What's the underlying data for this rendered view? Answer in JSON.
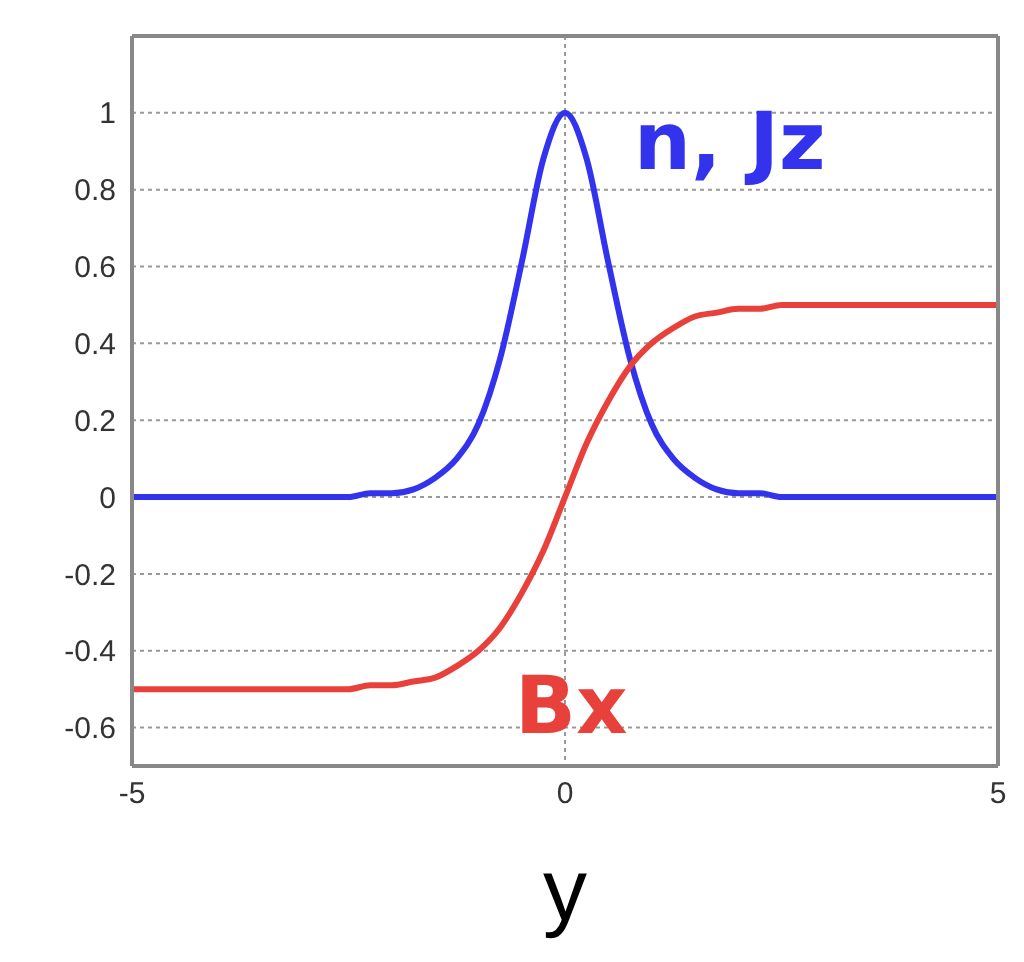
{
  "chart_data": {
    "type": "line",
    "xlabel": "y",
    "x": [
      -5,
      -4.75,
      -4.5,
      -4.25,
      -4,
      -3.75,
      -3.5,
      -3.25,
      -3,
      -2.75,
      -2.5,
      -2.25,
      -2,
      -1.75,
      -1.5,
      -1.25,
      -1,
      -0.75,
      -0.5,
      -0.25,
      0,
      0.25,
      0.5,
      0.75,
      1,
      1.25,
      1.5,
      1.75,
      2,
      2.25,
      2.5,
      2.75,
      3,
      3.25,
      3.5,
      3.75,
      4,
      4.25,
      4.5,
      4.75,
      5
    ],
    "series": [
      {
        "name": "n, Jz",
        "color": "#3333ee",
        "values": [
          0,
          0,
          0,
          0,
          0,
          0,
          0,
          0,
          0,
          0,
          0,
          0.01,
          0.01,
          0.02,
          0.05,
          0.1,
          0.19,
          0.36,
          0.61,
          0.88,
          1,
          0.88,
          0.61,
          0.36,
          0.19,
          0.1,
          0.05,
          0.02,
          0.01,
          0.01,
          0,
          0,
          0,
          0,
          0,
          0,
          0,
          0,
          0,
          0,
          0
        ]
      },
      {
        "name": "Bx",
        "color": "#e8403a",
        "values": [
          -0.5,
          -0.5,
          -0.5,
          -0.5,
          -0.5,
          -0.5,
          -0.5,
          -0.5,
          -0.5,
          -0.5,
          -0.5,
          -0.49,
          -0.49,
          -0.48,
          -0.47,
          -0.44,
          -0.4,
          -0.34,
          -0.25,
          -0.14,
          0,
          0.14,
          0.25,
          0.34,
          0.4,
          0.44,
          0.47,
          0.48,
          0.49,
          0.49,
          0.5,
          0.5,
          0.5,
          0.5,
          0.5,
          0.5,
          0.5,
          0.5,
          0.5,
          0.5,
          0.5
        ]
      }
    ],
    "xlim": [
      -5,
      5
    ],
    "xticks": [
      -5,
      0,
      5
    ],
    "ylim": [
      -0.7,
      1.2
    ],
    "yticks": [
      -0.6,
      -0.4,
      -0.2,
      0,
      0.2,
      0.4,
      0.6,
      0.8,
      1
    ],
    "grid": true,
    "legend": false,
    "marker": "none",
    "line_style": "solid"
  }
}
